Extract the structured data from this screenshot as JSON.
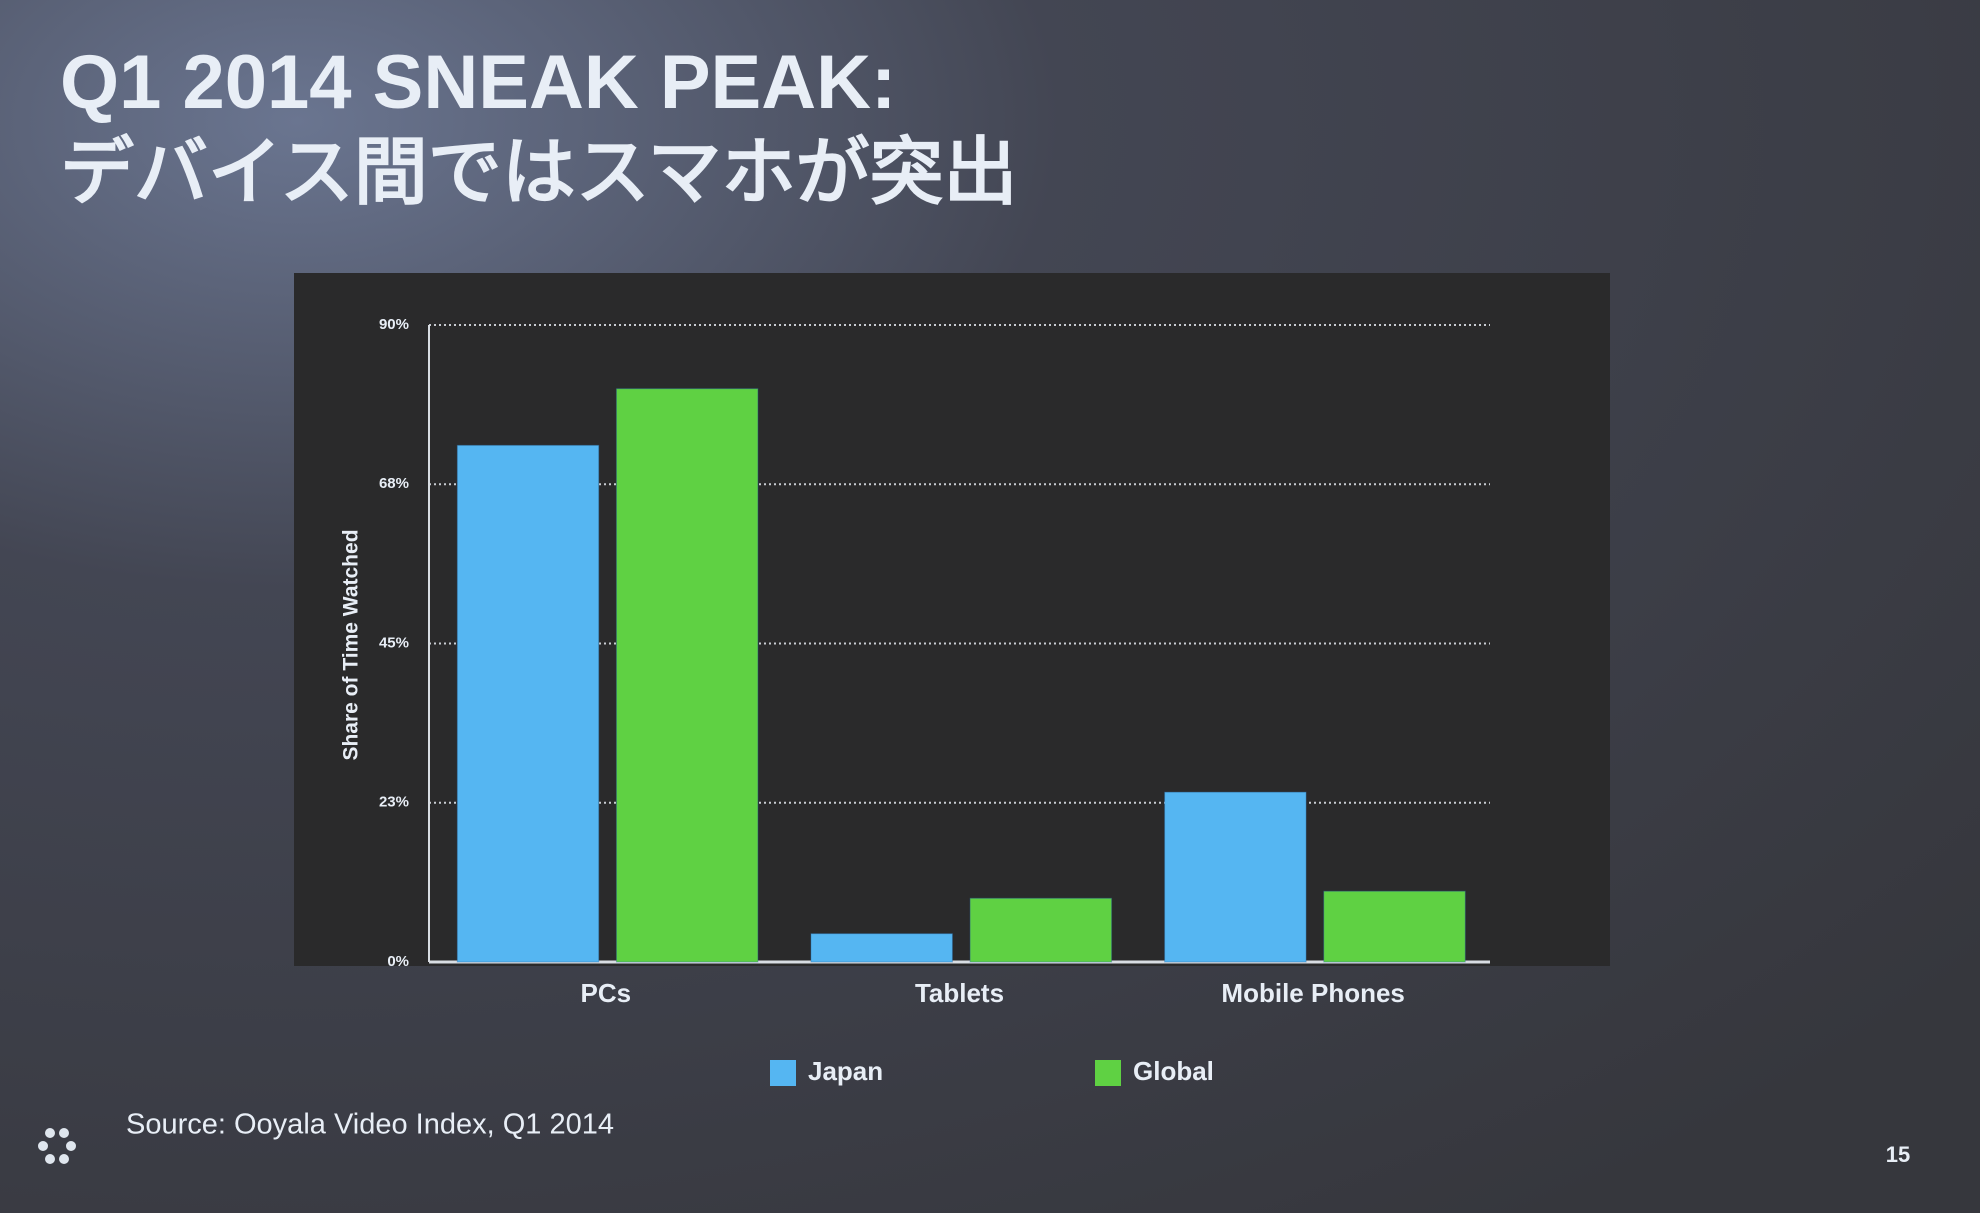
{
  "chart_data": {
    "type": "bar",
    "title": "Q1 2014 SNEAK PEAK:",
    "subtitle": "デバイス間ではスマホが突出",
    "y_label": "Share of Time Watched",
    "categories": [
      "PCs",
      "Tablets",
      "Mobile Phones"
    ],
    "series": [
      {
        "name": "Japan",
        "color": "#55b6f2",
        "values": [
          73,
          4,
          24
        ]
      },
      {
        "name": "Global",
        "color": "#5fd143",
        "values": [
          81,
          9,
          10
        ]
      }
    ],
    "ylim": [
      0,
      90
    ],
    "yticks": [
      {
        "value": 0,
        "label": "0%"
      },
      {
        "value": 22.5,
        "label": "23%"
      },
      {
        "value": 45,
        "label": "45%"
      },
      {
        "value": 67.5,
        "label": "68%"
      },
      {
        "value": 90,
        "label": "90%"
      }
    ],
    "grid": true,
    "legend": "bottom",
    "source": "Source:  Ooyala Video Index, Q1 2014",
    "page_number": "15"
  }
}
